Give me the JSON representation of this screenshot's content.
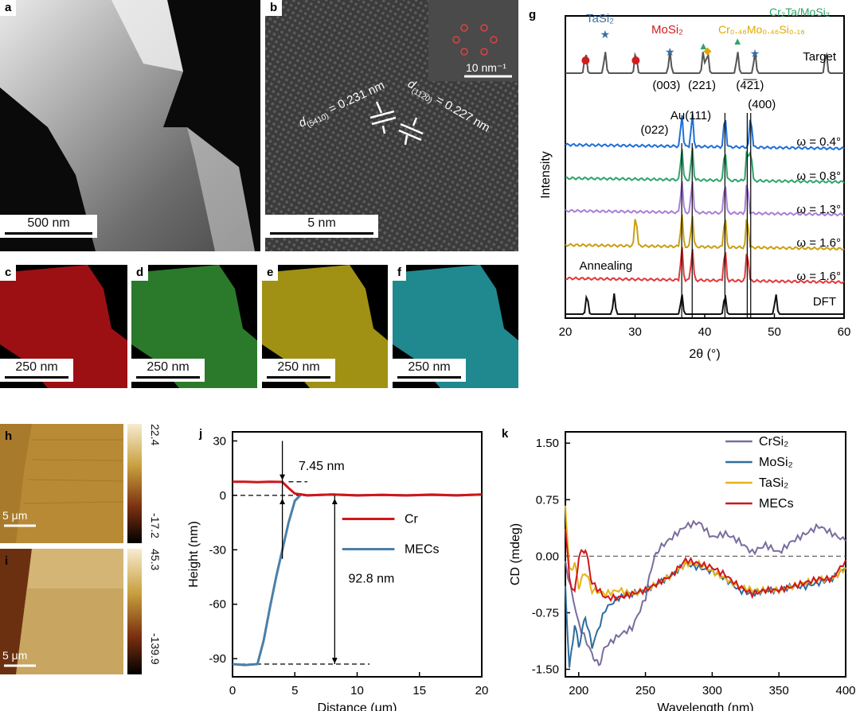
{
  "panel_a": {
    "label": "a",
    "scale": "500 nm"
  },
  "panel_b": {
    "label": "b",
    "scale": "5 nm",
    "d1": "d(5410) = 0.231 nm",
    "d1_main": "d",
    "d1_sub": "(5410)",
    "d1_val": " = 0.231 nm",
    "d2_main": "d",
    "d2_sub": "(11̅2̅0)",
    "d2_val": " = 0.227 nm",
    "inset_scale": "10 nm⁻¹"
  },
  "panel_c": {
    "label": "c",
    "scale": "250 nm",
    "color": "#d0161b"
  },
  "panel_d": {
    "label": "d",
    "scale": "250 nm",
    "color": "#3aa33a"
  },
  "panel_e": {
    "label": "e",
    "scale": "250 nm",
    "color": "#d6c21b"
  },
  "panel_f": {
    "label": "f",
    "scale": "250 nm",
    "color": "#2bb6bf"
  },
  "panel_h": {
    "label": "h",
    "scale": "5 μm",
    "cb_max": "22.4",
    "cb_min": "-17.2"
  },
  "panel_i": {
    "label": "i",
    "scale": "5 μm",
    "cb_max": "45.3",
    "cb_min": "-139.9"
  },
  "panel_g": {
    "label": "g",
    "ylabel": "Intensity",
    "xlabel": "2θ (°)",
    "xticks": [
      "20",
      "30",
      "40",
      "50",
      "60"
    ],
    "legend_tasi2": "TaSi₂",
    "legend_mosi2": "MoSi₂",
    "legend_crmosi": "Cr₀.₄₆Mo₀.₄₆Si₀.₁₆",
    "legend_cr2ta": "Cr₂Ta/MoSi₂",
    "target": "Target",
    "annealing": "Annealing",
    "dft": "DFT",
    "peaks": [
      "(003)",
      "(221)",
      "(4̅2̅1)",
      "(400)",
      "Au(111)",
      "(022)"
    ],
    "omegas": [
      "ω = 0.4°",
      "ω = 0.8°",
      "ω = 1.3°",
      "ω = 1.6°",
      "ω = 1.6°"
    ]
  },
  "panel_j": {
    "label": "j",
    "ylabel": "Height (nm)",
    "xlabel": "Distance (μm)",
    "step_small": "7.45 nm",
    "step_large": "92.8 nm",
    "legend": [
      "Cr",
      "MECs"
    ]
  },
  "panel_k": {
    "label": "k",
    "ylabel": "CD (mdeg)",
    "xlabel": "Wavelength (nm)",
    "legend": [
      "CrSi₂",
      "MoSi₂",
      "TaSi₂",
      "MECs"
    ]
  },
  "chart_data": [
    {
      "type": "line",
      "title": "",
      "xlabel": "2θ (°)",
      "ylabel": "Intensity",
      "xlim": [
        20,
        60
      ],
      "series": [
        {
          "name": "Target",
          "color": "#555555",
          "peaks": [
            22.9,
            25.7,
            30.1,
            35.0,
            39.8,
            40.4,
            44.7,
            47.2,
            57.4
          ]
        },
        {
          "name": "ω = 0.4°",
          "color": "#1f6fd6",
          "peaks": [
            36.7,
            38.2,
            42.9,
            46.6
          ]
        },
        {
          "name": "ω = 0.8°",
          "color": "#2fa56a",
          "peaks": [
            36.7,
            38.2,
            42.9,
            46.1,
            46.6
          ]
        },
        {
          "name": "ω = 1.3°",
          "color": "#a97fd6",
          "peaks": [
            36.7,
            38.2,
            42.9,
            46.1
          ]
        },
        {
          "name": "ω = 1.6°",
          "color": "#c8a011",
          "peaks": [
            30.1,
            36.7,
            38.2,
            42.9,
            46.1
          ]
        },
        {
          "name": "Annealing ω = 1.6°",
          "color": "#e0393a",
          "peaks": [
            36.7,
            38.2,
            42.9,
            46.1
          ]
        },
        {
          "name": "DFT",
          "color": "#111111",
          "peaks": [
            23.1,
            27.0,
            36.7,
            42.9,
            50.2
          ]
        }
      ]
    },
    {
      "type": "line",
      "title": "",
      "xlabel": "Distance (μm)",
      "ylabel": "Height (nm)",
      "xlim": [
        0,
        20
      ],
      "ylim": [
        -100,
        35
      ],
      "series": [
        {
          "name": "Cr",
          "color": "#d0161b",
          "x": [
            0,
            1,
            2,
            3,
            4,
            4.5,
            5,
            6,
            8,
            10,
            12,
            14,
            16,
            18,
            20
          ],
          "y": [
            7.5,
            7.5,
            7.3,
            7.5,
            7.4,
            4,
            1,
            0,
            0.5,
            0,
            0.3,
            0,
            0.4,
            0,
            0.5
          ]
        },
        {
          "name": "MECs",
          "color": "#4a7fa8",
          "x": [
            0,
            1,
            2,
            2.5,
            3,
            3.5,
            4,
            4.5,
            5,
            5.5,
            6,
            8,
            10,
            12,
            14,
            16,
            18,
            20
          ],
          "y": [
            -93,
            -93.5,
            -93,
            -80,
            -62,
            -45,
            -30,
            -15,
            -3,
            0.5,
            0,
            0.5,
            0,
            0.3,
            0,
            0.3,
            0,
            0.5
          ]
        }
      ]
    },
    {
      "type": "line",
      "title": "",
      "xlabel": "Wavelength (nm)",
      "ylabel": "CD (mdeg)",
      "xlim": [
        190,
        400
      ],
      "ylim": [
        -1.6,
        1.65
      ],
      "series": [
        {
          "name": "CrSi₂",
          "color": "#7a6c9e",
          "x": [
            190,
            200,
            210,
            215,
            220,
            230,
            240,
            250,
            255,
            260,
            270,
            280,
            290,
            300,
            310,
            320,
            330,
            340,
            350,
            360,
            370,
            380,
            390,
            400
          ],
          "y": [
            -0.1,
            -0.9,
            -1.3,
            -1.45,
            -1.2,
            -1.05,
            -0.95,
            -0.55,
            -0.1,
            0.1,
            0.25,
            0.4,
            0.45,
            0.25,
            0.3,
            0.2,
            0.05,
            0.15,
            0.05,
            0.2,
            0.3,
            0.4,
            0.3,
            0.2
          ]
        },
        {
          "name": "MoSi₂",
          "color": "#2f6d9c",
          "x": [
            190,
            193,
            197,
            200,
            205,
            210,
            220,
            230,
            240,
            250,
            260,
            270,
            280,
            290,
            300,
            310,
            320,
            330,
            340,
            350,
            360,
            370,
            380,
            390,
            400
          ],
          "y": [
            -0.4,
            -1.5,
            -0.9,
            -1.2,
            -0.8,
            -1.2,
            -0.7,
            -0.55,
            -0.5,
            -0.45,
            -0.35,
            -0.25,
            -0.1,
            -0.15,
            -0.2,
            -0.3,
            -0.45,
            -0.5,
            -0.45,
            -0.45,
            -0.4,
            -0.4,
            -0.35,
            -0.3,
            -0.15
          ]
        },
        {
          "name": "TaSi₂",
          "color": "#e5b31a",
          "x": [
            190,
            193,
            197,
            200,
            205,
            210,
            220,
            230,
            240,
            250,
            260,
            270,
            280,
            290,
            300,
            310,
            320,
            330,
            340,
            350,
            360,
            370,
            380,
            390,
            400
          ],
          "y": [
            0.7,
            -0.2,
            -0.1,
            -0.4,
            -0.2,
            -0.45,
            -0.5,
            -0.45,
            -0.5,
            -0.45,
            -0.35,
            -0.25,
            -0.1,
            -0.1,
            -0.2,
            -0.3,
            -0.4,
            -0.45,
            -0.45,
            -0.45,
            -0.4,
            -0.35,
            -0.3,
            -0.3,
            -0.15
          ]
        },
        {
          "name": "MECs",
          "color": "#d0161b",
          "x": [
            190,
            193,
            197,
            200,
            205,
            210,
            220,
            230,
            240,
            250,
            260,
            270,
            280,
            290,
            300,
            310,
            320,
            330,
            340,
            350,
            360,
            370,
            380,
            390,
            400
          ],
          "y": [
            0.4,
            -0.3,
            -0.5,
            0.0,
            0.1,
            -0.35,
            -0.55,
            -0.55,
            -0.5,
            -0.45,
            -0.35,
            -0.25,
            -0.05,
            -0.1,
            -0.15,
            -0.25,
            -0.4,
            -0.5,
            -0.45,
            -0.45,
            -0.4,
            -0.35,
            -0.3,
            -0.3,
            -0.05
          ]
        }
      ]
    }
  ]
}
